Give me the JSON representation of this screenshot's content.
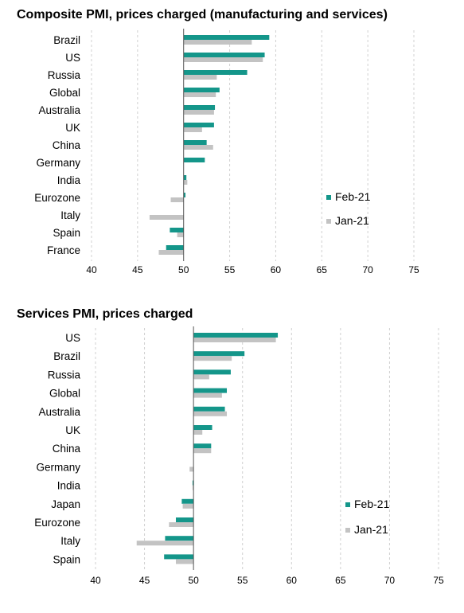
{
  "colors": {
    "feb": "#14968a",
    "jan": "#c3c3c3",
    "grid": "#d0d0d0",
    "axis": "#555555"
  },
  "chart_data": [
    {
      "type": "bar",
      "orientation": "horizontal",
      "baseline": 50,
      "title": "Composite PMI, prices charged (manufacturing  and services)",
      "categories": [
        "Brazil",
        "US",
        "Russia",
        "Global",
        "Australia",
        "UK",
        "China",
        "Germany",
        "India",
        "Eurozone",
        "Italy",
        "Spain",
        "France"
      ],
      "series": [
        {
          "name": "Feb-21",
          "values": [
            59.3,
            58.8,
            56.9,
            53.9,
            53.4,
            53.3,
            52.5,
            52.3,
            50.3,
            50.2,
            null,
            48.5,
            48.1
          ]
        },
        {
          "name": "Jan-21",
          "values": [
            57.4,
            58.6,
            53.6,
            53.5,
            53.3,
            52.0,
            53.2,
            null,
            50.4,
            48.6,
            46.3,
            49.3,
            47.3
          ]
        }
      ],
      "xlim": [
        40,
        75
      ],
      "xticks": [
        40,
        45,
        50,
        55,
        60,
        65,
        70,
        75
      ],
      "grid": true,
      "legend_position": "right"
    },
    {
      "type": "bar",
      "orientation": "horizontal",
      "baseline": 50,
      "title": "Services PMI, prices charged",
      "categories": [
        "US",
        "Brazil",
        "Russia",
        "Global",
        "Australia",
        "UK",
        "China",
        "Germany",
        "India",
        "Japan",
        "Eurozone",
        "Italy",
        "Spain"
      ],
      "series": [
        {
          "name": "Feb-21",
          "values": [
            58.6,
            55.2,
            53.8,
            53.4,
            53.2,
            51.9,
            51.8,
            null,
            49.9,
            48.8,
            48.2,
            47.1,
            47.0
          ]
        },
        {
          "name": "Jan-21",
          "values": [
            58.4,
            53.9,
            51.6,
            52.9,
            53.4,
            50.9,
            51.8,
            49.6,
            49.9,
            48.9,
            47.5,
            44.2,
            48.2
          ]
        }
      ],
      "xlim": [
        40,
        75
      ],
      "xticks": [
        40,
        45,
        50,
        55,
        60,
        65,
        70,
        75
      ],
      "grid": true,
      "legend_position": "right"
    }
  ]
}
